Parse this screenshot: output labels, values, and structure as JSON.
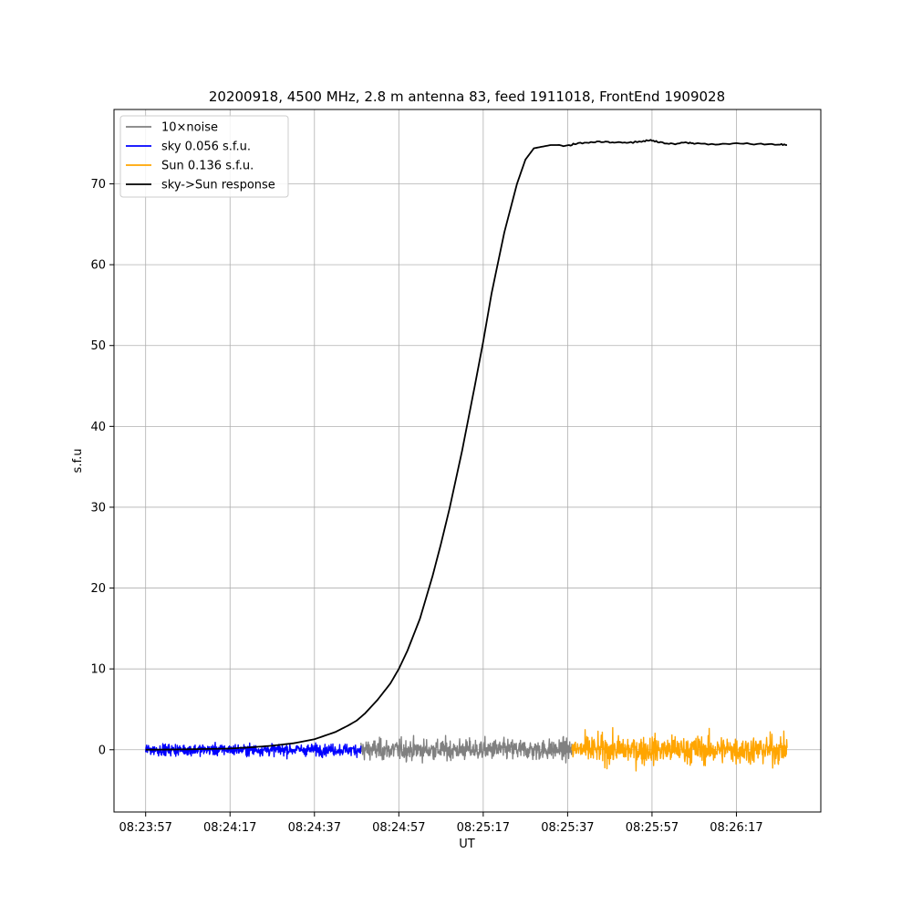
{
  "chart_data": {
    "type": "line",
    "title": "20200918, 4500 MHz, 2.8 m antenna 83, feed 1911018, FrontEnd 1909028",
    "xlabel": "UT",
    "ylabel": "s.f.u",
    "x_tick_labels": [
      "08:23:57",
      "08:24:17",
      "08:24:37",
      "08:24:57",
      "08:25:17",
      "08:25:37",
      "08:25:57",
      "08:26:17"
    ],
    "x_ticks_seconds": [
      0,
      20,
      40,
      60,
      80,
      100,
      120,
      140
    ],
    "xlim_seconds": [
      -7.5,
      160
    ],
    "ylim": [
      -7.7,
      79.2
    ],
    "y_ticks": [
      0,
      10,
      20,
      30,
      40,
      50,
      60,
      70
    ],
    "grid": true,
    "legend_placement": "top-left",
    "legend": [
      {
        "label": "10×noise",
        "color": "#808080"
      },
      {
        "label": "sky 0.056 s.f.u.",
        "color": "#0000ff"
      },
      {
        "label": "Sun 0.136 s.f.u.",
        "color": "#ffa500"
      },
      {
        "label": "sky->Sun response",
        "color": "#000000"
      }
    ],
    "series": [
      {
        "name": "sky->Sun response",
        "color": "#000000",
        "x": [
          0,
          10,
          20,
          25,
          30,
          35,
          40,
          45,
          48,
          50,
          52,
          55,
          58,
          60,
          62,
          65,
          68,
          70,
          72,
          75,
          78,
          80,
          82,
          85,
          88,
          90,
          92,
          94,
          96,
          97,
          100,
          102,
          105,
          108,
          110,
          112,
          115,
          118,
          120,
          122,
          125,
          128,
          130,
          135,
          140,
          145,
          150,
          152
        ],
        "y": [
          0.0,
          0.05,
          0.15,
          0.3,
          0.5,
          0.8,
          1.3,
          2.2,
          3.0,
          3.6,
          4.5,
          6.2,
          8.2,
          10.0,
          12.2,
          16.2,
          21.5,
          25.5,
          29.8,
          37.0,
          45.0,
          50.5,
          56.5,
          64.0,
          70.0,
          73.0,
          74.4,
          74.6,
          74.8,
          74.8,
          74.7,
          75.0,
          75.1,
          75.2,
          75.1,
          75.2,
          75.1,
          75.3,
          75.4,
          75.1,
          74.9,
          75.1,
          75.0,
          74.9,
          75.0,
          74.9,
          74.9,
          74.8
        ]
      },
      {
        "name": "sky 0.056 s.f.u.",
        "color": "#0000ff",
        "x_range": [
          0,
          51
        ],
        "amplitude": 0.56,
        "peak_amplitude": 1.7
      },
      {
        "name": "10×noise",
        "color": "#808080",
        "x_range": [
          51,
          101
        ],
        "amplitude": 1.0,
        "peak_amplitude": 4.8
      },
      {
        "name": "Sun 0.136 s.f.u.",
        "color": "#ffa500",
        "x_range": [
          101,
          152
        ],
        "amplitude": 1.36,
        "peak_amplitude": 4.1
      }
    ]
  }
}
